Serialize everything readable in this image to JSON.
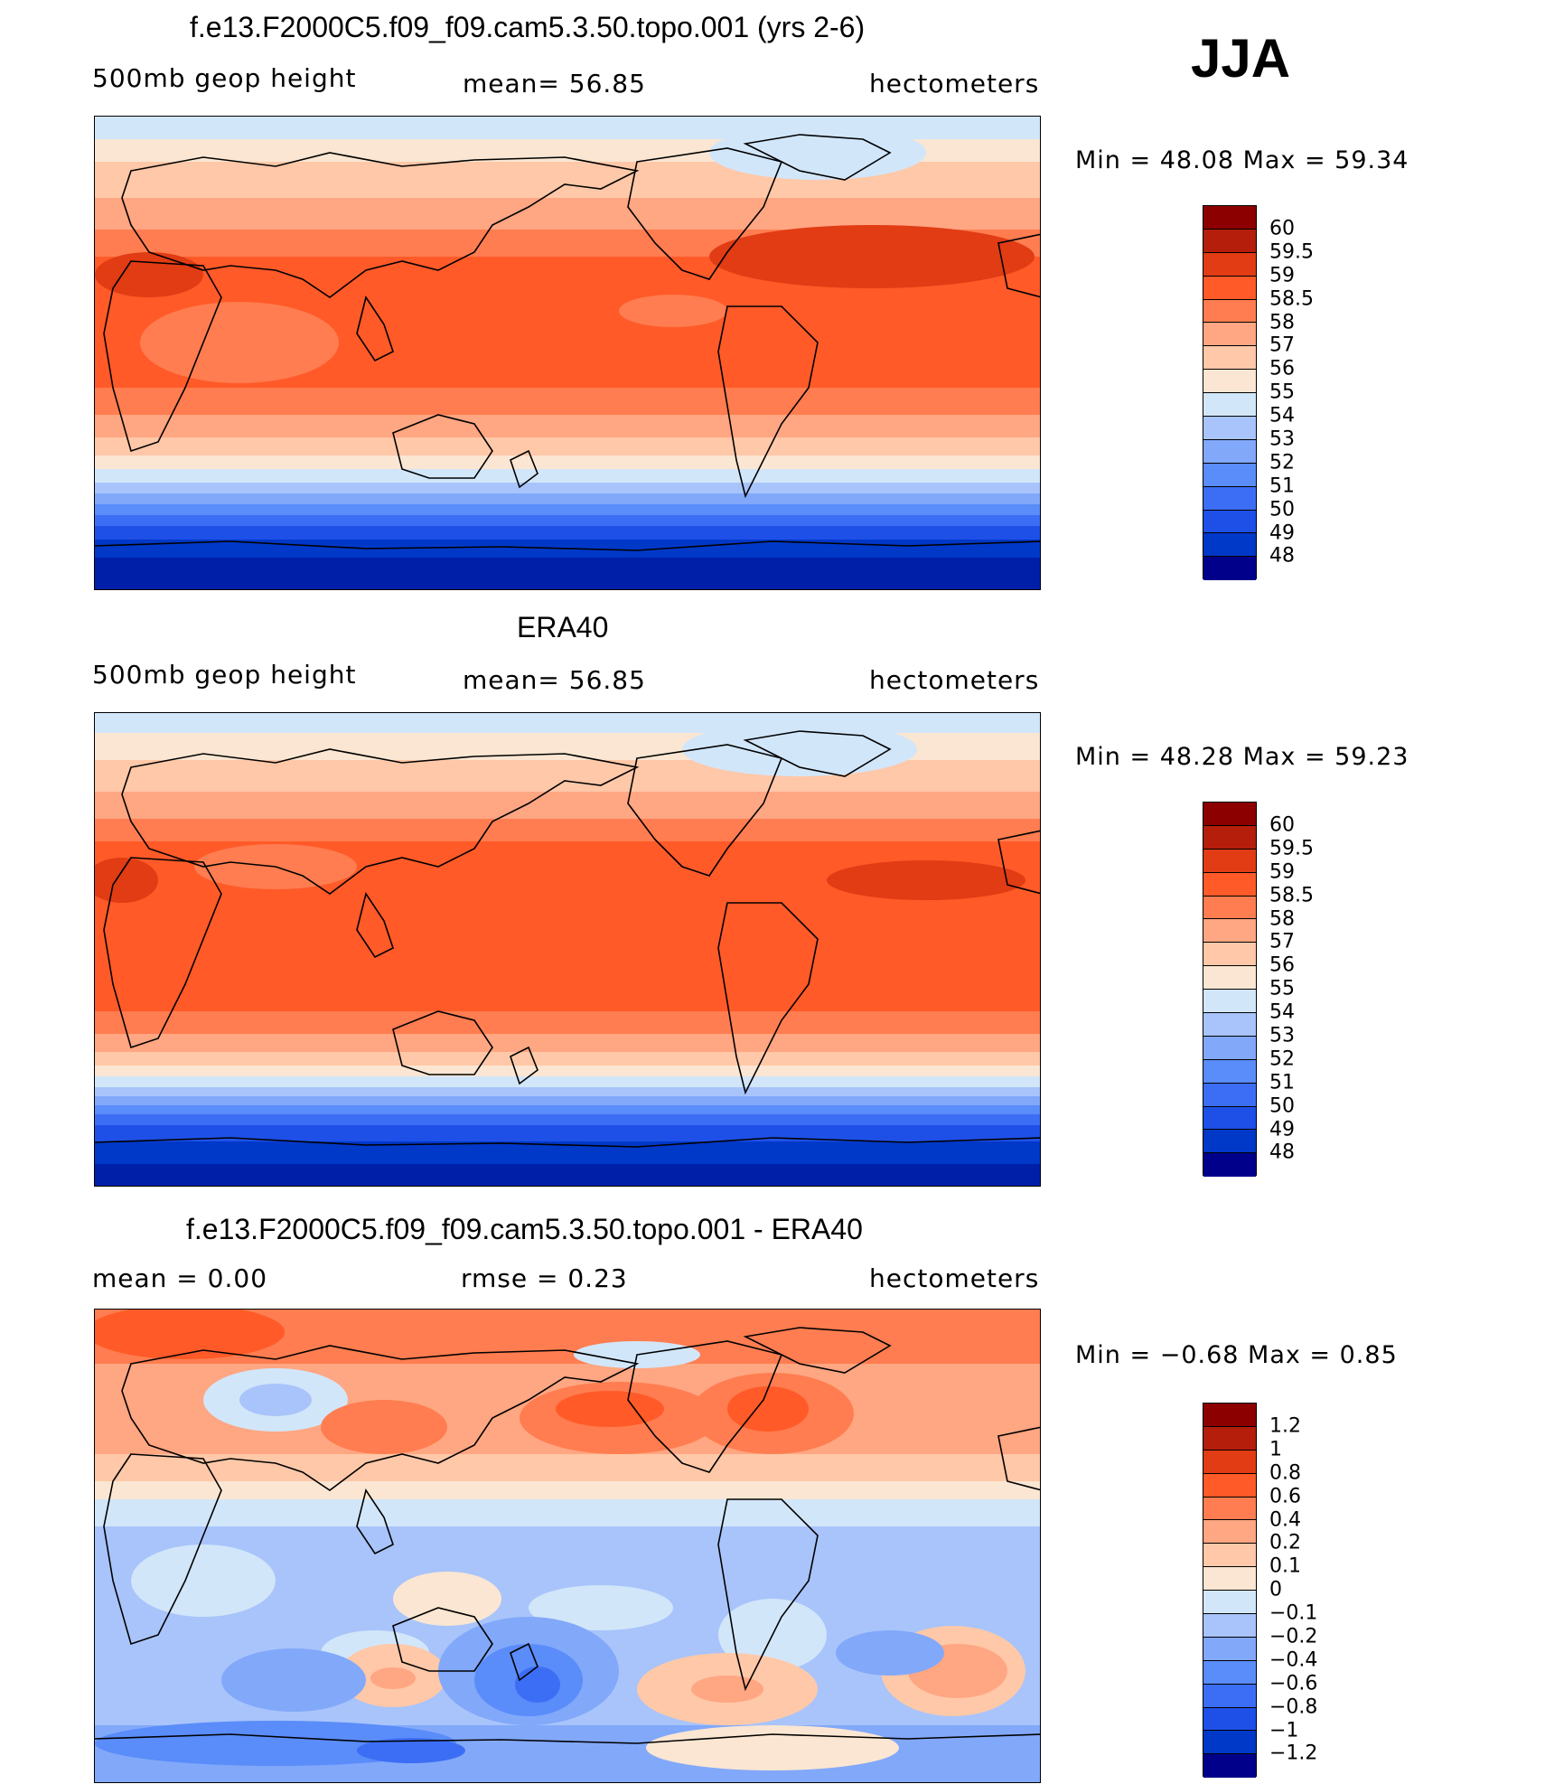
{
  "season": "JJA",
  "colors": {
    "ramp": [
      "#00008a",
      "#001fa8",
      "#0038c8",
      "#1e50e8",
      "#3c6ef5",
      "#5a8cfa",
      "#82a8fa",
      "#a8c4fa",
      "#d2e6fa",
      "#fae6d2",
      "#ffc8a8",
      "#ffa682",
      "#ff7d50",
      "#ff5a28",
      "#e13c14",
      "#b41e0a",
      "#8c0000"
    ]
  },
  "panel1": {
    "title": "f.e13.F2000C5.f09_f09.cam5.3.50.topo.001 (yrs 2-6)",
    "left": "500mb  geop  height",
    "mid": "mean=   56.85",
    "right": "hectometers",
    "minmax": "Min  =    48.08  Max  =    59.34",
    "levels": [
      "60",
      "59.5",
      "59",
      "58.5",
      "58",
      "57",
      "56",
      "55",
      "54",
      "53",
      "52",
      "51",
      "50",
      "49",
      "48"
    ]
  },
  "panel2": {
    "title": "ERA40",
    "left": "500mb  geop  height",
    "mid": "mean=   56.85",
    "right": "hectometers",
    "minmax": "Min  =    48.28  Max  =    59.23",
    "levels": [
      "60",
      "59.5",
      "59",
      "58.5",
      "58",
      "57",
      "56",
      "55",
      "54",
      "53",
      "52",
      "51",
      "50",
      "49",
      "48"
    ]
  },
  "panel3": {
    "title": "f.e13.F2000C5.f09_f09.cam5.3.50.topo.001 - ERA40",
    "left": "mean  =      0.00",
    "mid": "rmse  =      0.23",
    "right": "hectometers",
    "minmax": "Min  =    −0.68  Max  =       0.85",
    "levels": [
      "1.2",
      "1",
      "0.8",
      "0.6",
      "0.4",
      "0.2",
      "0.1",
      "0",
      "−0.1",
      "−0.2",
      "−0.4",
      "−0.6",
      "−0.8",
      "−1",
      "−1.2"
    ]
  }
}
